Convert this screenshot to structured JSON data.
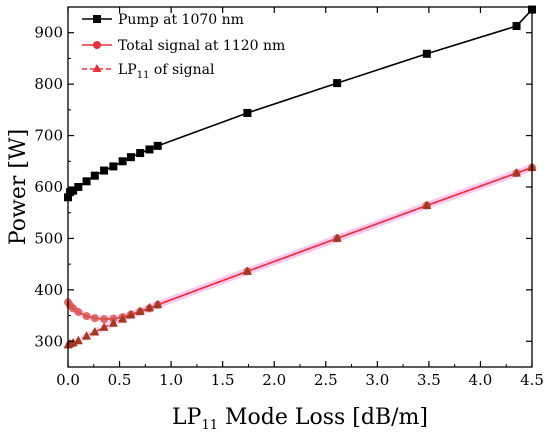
{
  "chart_data": {
    "type": "line",
    "title": "",
    "xlabel": {
      "main": "LP",
      "sub": "11",
      "rest": " Mode Loss [dB/m]"
    },
    "ylabel": "Power [W]",
    "xlim": [
      0,
      4.5
    ],
    "ylim": [
      250,
      950
    ],
    "xticks": [
      "0.0",
      "0.5",
      "1.0",
      "1.5",
      "2.0",
      "2.5",
      "3.0",
      "3.5",
      "4.0",
      "4.5"
    ],
    "yticks": [
      "300",
      "400",
      "500",
      "600",
      "700",
      "800",
      "900"
    ],
    "grid": false,
    "legend_position": "top-left",
    "series": [
      {
        "name": "Pump at 1070 nm",
        "color": "#000000",
        "marker": "square",
        "line": "solid",
        "x": [
          0.0,
          0.02,
          0.05,
          0.1,
          0.18,
          0.26,
          0.35,
          0.44,
          0.53,
          0.61,
          0.7,
          0.79,
          0.87,
          1.74,
          2.61,
          3.48,
          4.35,
          4.5
        ],
        "y": [
          580,
          590,
          593,
          600,
          611,
          622,
          632,
          640,
          650,
          658,
          666,
          673,
          680,
          744,
          802,
          859,
          913,
          945
        ]
      },
      {
        "name": "Total signal at 1120 nm",
        "color": "#e8333a",
        "marker": "circle",
        "line": "solid",
        "x": [
          0.0,
          0.02,
          0.05,
          0.1,
          0.18,
          0.26,
          0.35,
          0.44,
          0.53,
          0.61,
          0.7,
          0.79,
          0.87,
          1.74,
          2.61,
          3.48,
          4.35,
          4.5
        ],
        "y": [
          376,
          370,
          364,
          357,
          349,
          345,
          343,
          344,
          347,
          352,
          358,
          364,
          371,
          436,
          500,
          564,
          627,
          638
        ]
      },
      {
        "name": {
          "main": "LP",
          "sub": "11",
          "rest": " of signal"
        },
        "color": "#e8333a",
        "marker": "triangle",
        "line": "dashed",
        "x": [
          0.0,
          0.02,
          0.05,
          0.1,
          0.18,
          0.26,
          0.35,
          0.44,
          0.53,
          0.61,
          0.7,
          0.79,
          0.87,
          1.74,
          2.61,
          3.48,
          4.35,
          4.5
        ],
        "y": [
          293,
          295,
          297,
          301,
          310,
          318,
          327,
          335,
          343,
          351,
          358,
          365,
          371,
          436,
          500,
          564,
          627,
          638
        ]
      }
    ]
  }
}
